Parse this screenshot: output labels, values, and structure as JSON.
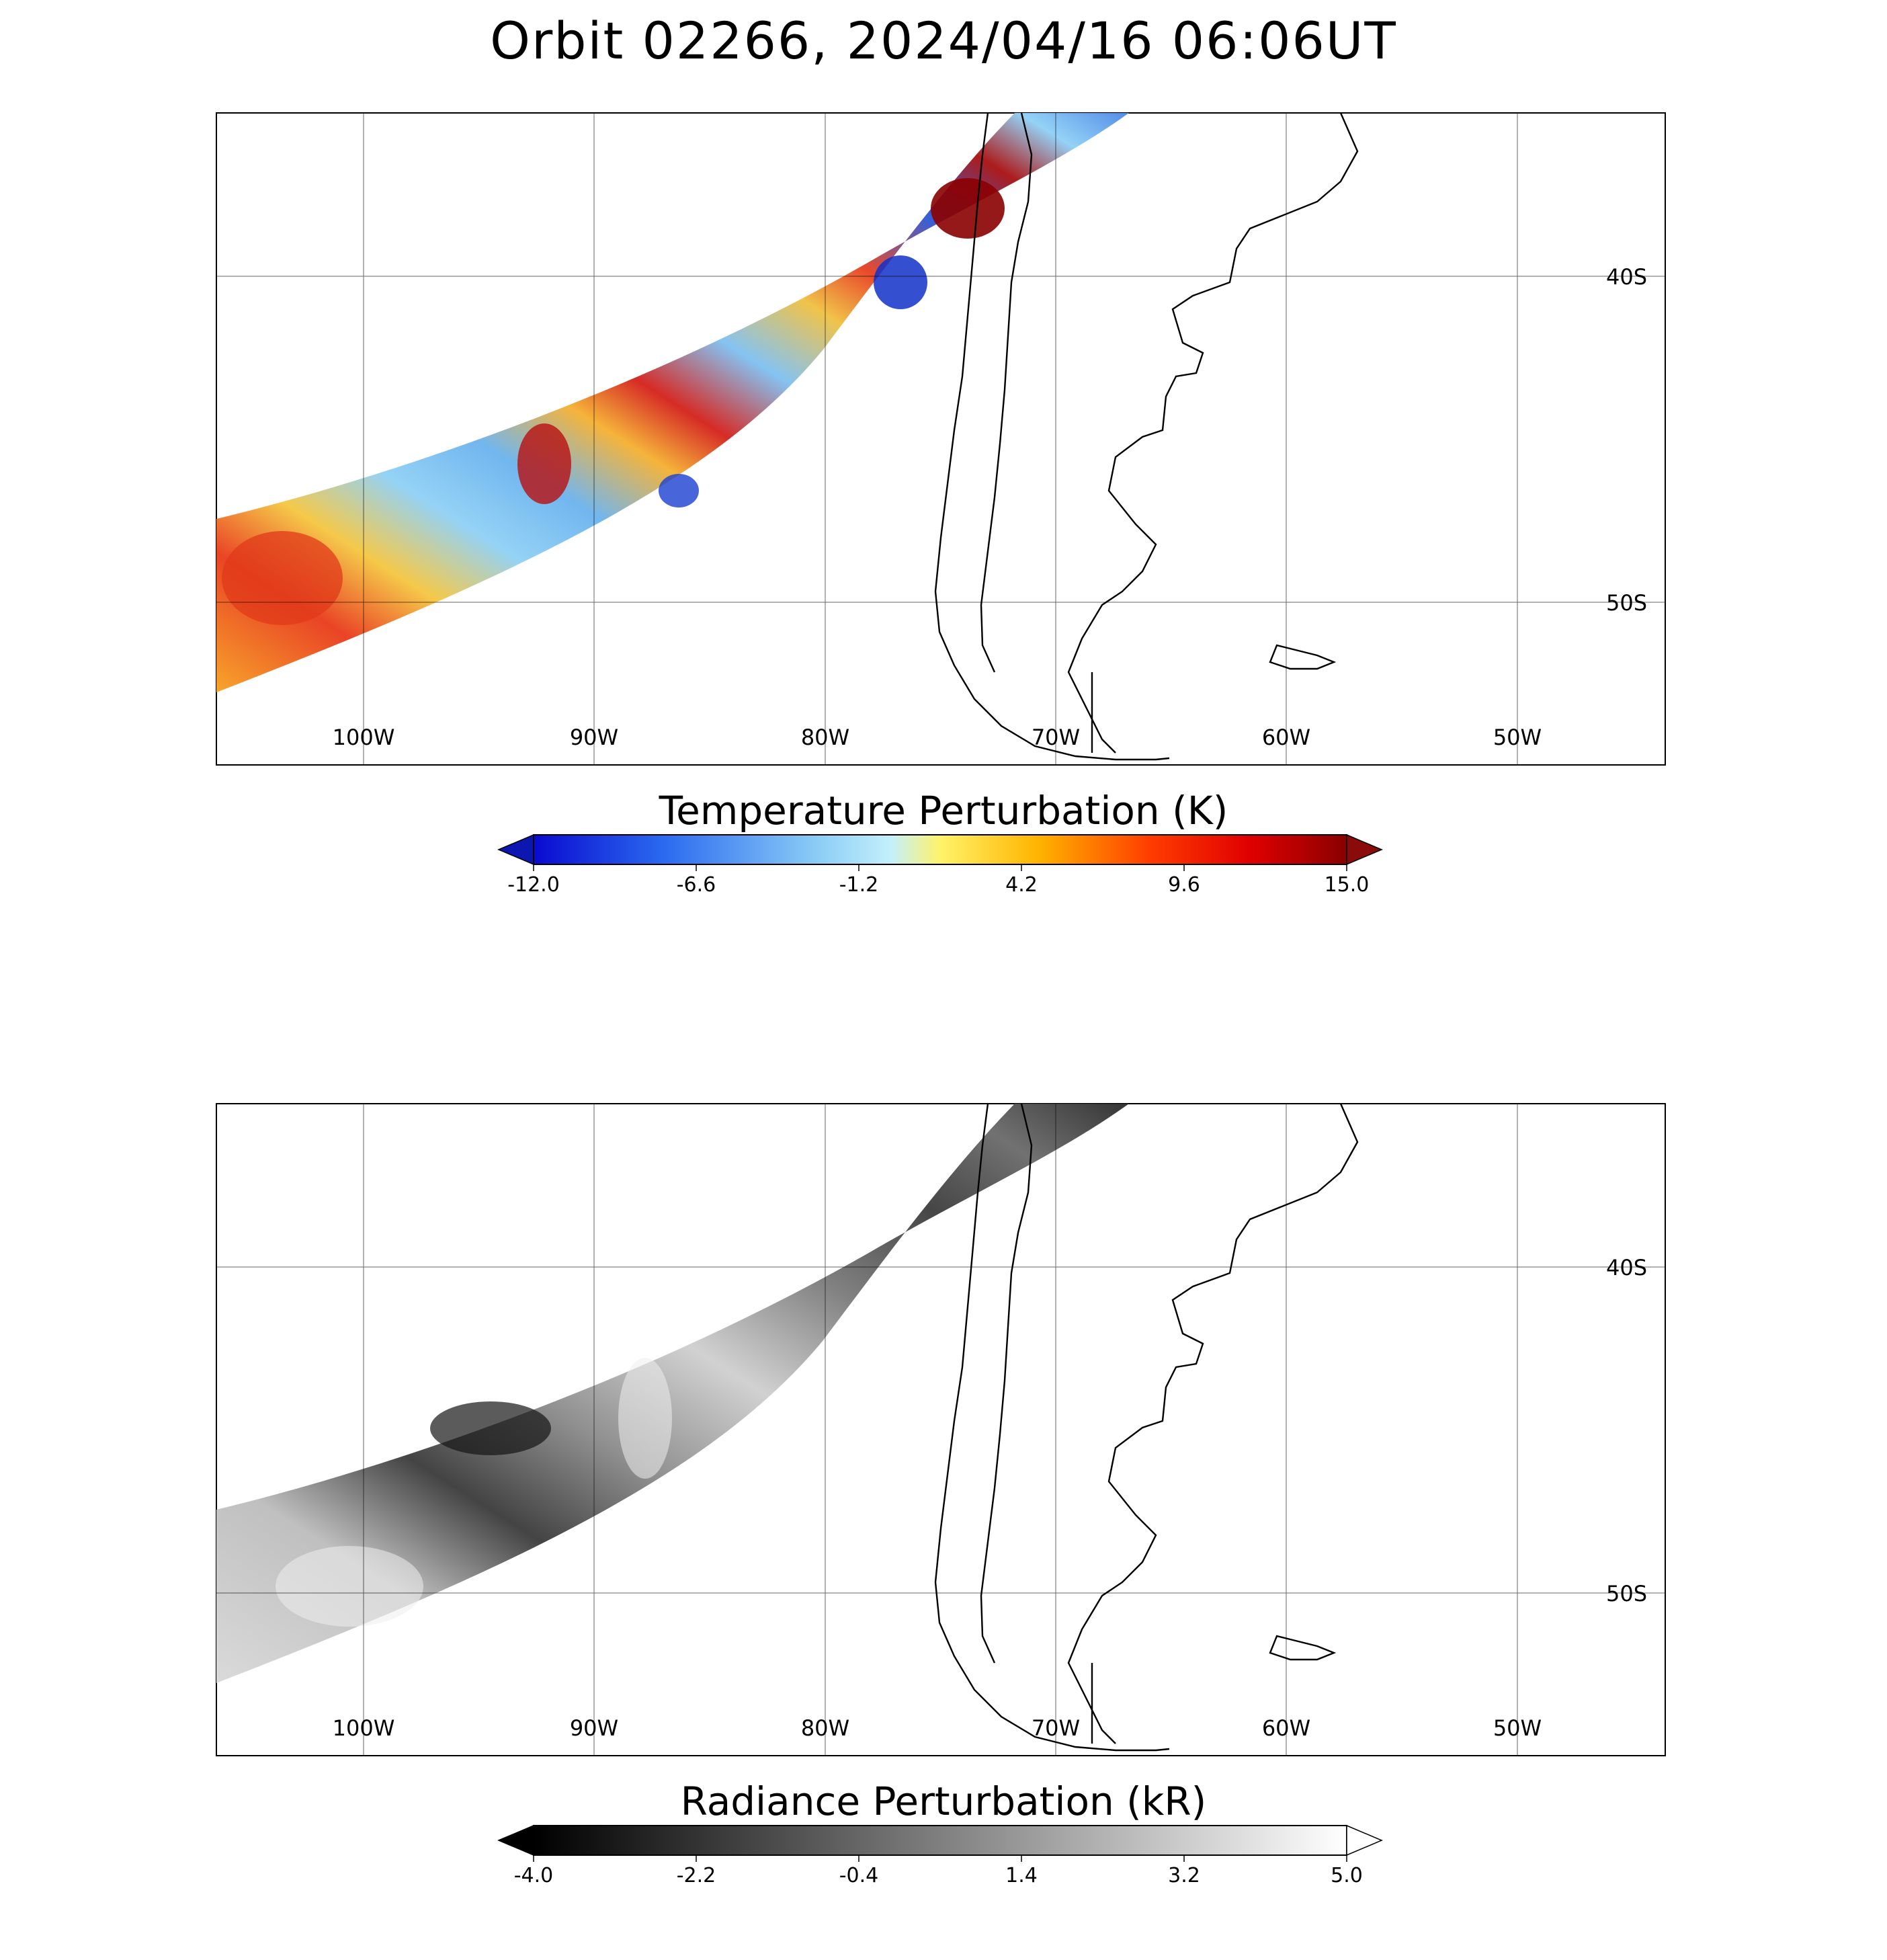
{
  "title": "Orbit 02266, 2024/04/16 06:06UT",
  "map": {
    "lon_labels": [
      "100W",
      "90W",
      "80W",
      "70W",
      "60W",
      "50W"
    ],
    "lat_labels": [
      "40S",
      "50S"
    ],
    "lon_range": [
      -106.4,
      -43.6
    ],
    "lat_range": [
      -55.0,
      -35.0
    ]
  },
  "panels": [
    {
      "colorbar": {
        "title": "Temperature Perturbation (K)",
        "ticks": [
          "-12.0",
          "-6.6",
          "-1.2",
          "4.2",
          "9.6",
          "15.0"
        ],
        "range": [
          -12.0,
          15.0
        ],
        "colormap": [
          "#0a0ad0",
          "#2a6af0",
          "#8ccdf6",
          "#b6ecfb",
          "#fff36a",
          "#ffb400",
          "#ff3b00",
          "#e00000",
          "#8b0000"
        ],
        "under_color": "#0b17b0",
        "over_color": "#8b0a0a"
      }
    },
    {
      "colorbar": {
        "title": "Radiance Perturbation (kR)",
        "ticks": [
          "-4.0",
          "-2.2",
          "-0.4",
          "1.4",
          "3.2",
          "5.0"
        ],
        "range": [
          -4.0,
          5.0
        ],
        "colormap": [
          "#000000",
          "#ffffff"
        ],
        "under_color": "#000000",
        "over_color": "#ffffff"
      }
    }
  ]
}
